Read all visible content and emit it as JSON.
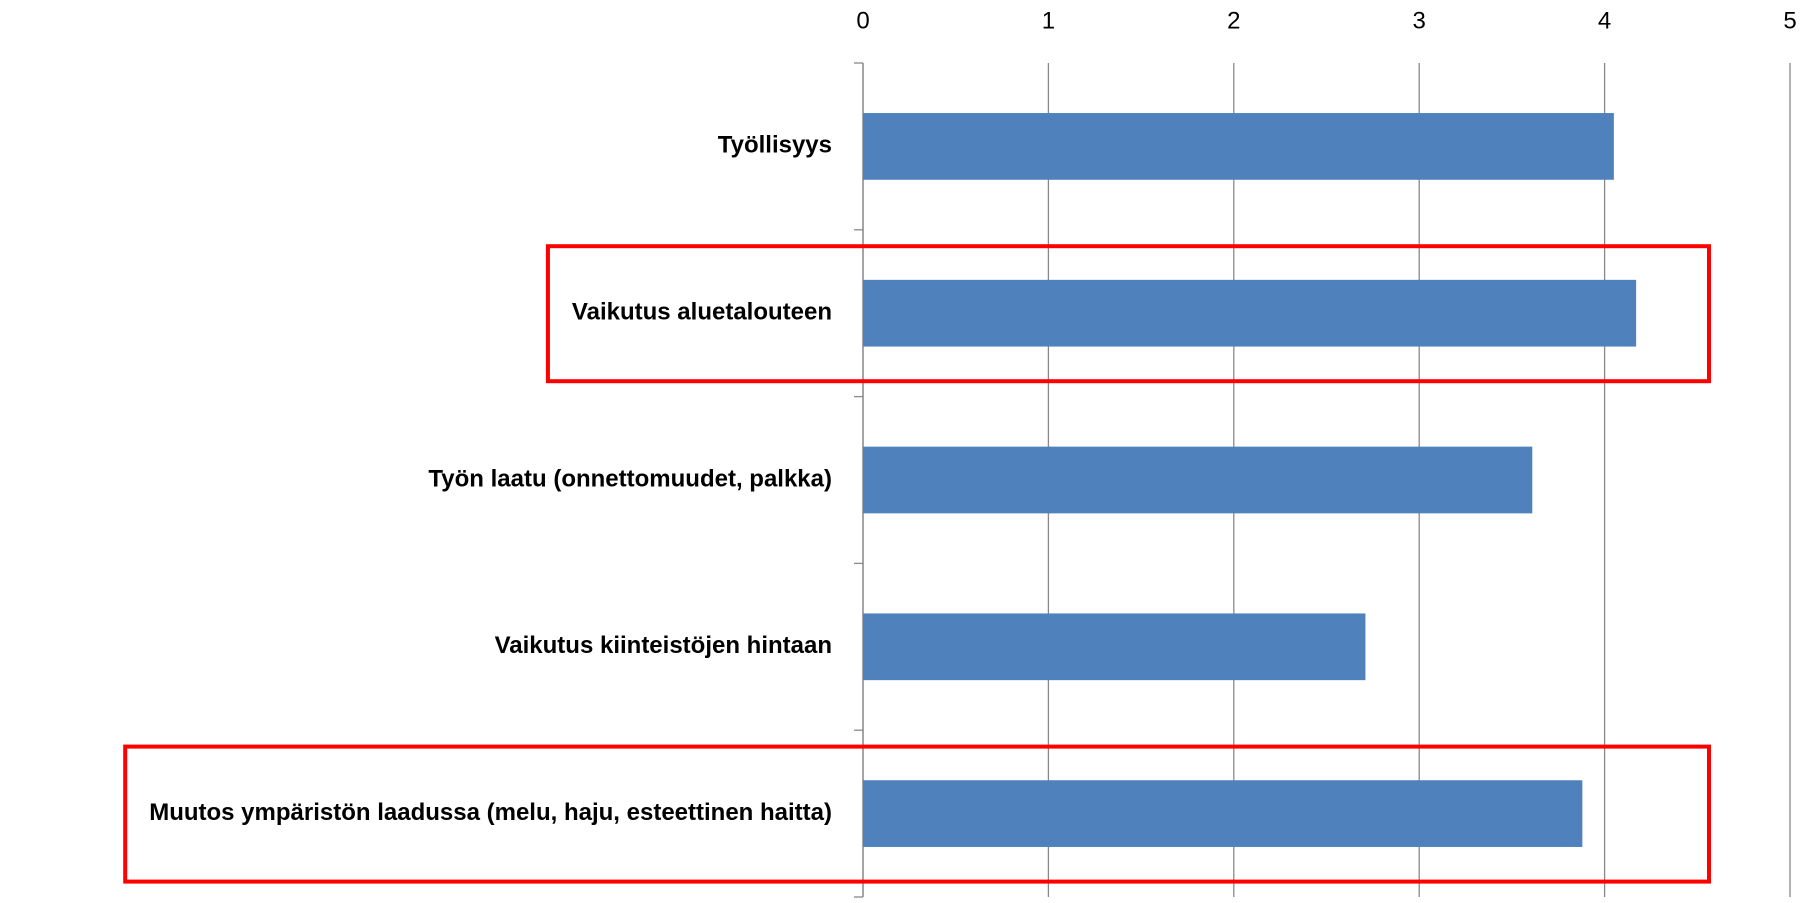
{
  "chart_data": {
    "type": "bar",
    "orientation": "horizontal",
    "categories": [
      "Työllisyys",
      "Vaikutus aluetalouteen",
      "Työn laatu (onnettomuudet, palkka)",
      "Vaikutus kiinteistöjen hintaan",
      "Muutos ympäristön laadussa (melu, haju, esteettinen haitta)"
    ],
    "values": [
      4.05,
      4.17,
      3.61,
      2.71,
      3.88
    ],
    "color": "#4f81bd",
    "xlim": [
      0,
      5
    ],
    "xticks": [
      0,
      1,
      2,
      3,
      4,
      5
    ],
    "grid": true,
    "highlighted": [
      1,
      4
    ],
    "highlight_color": "#ff0000"
  }
}
